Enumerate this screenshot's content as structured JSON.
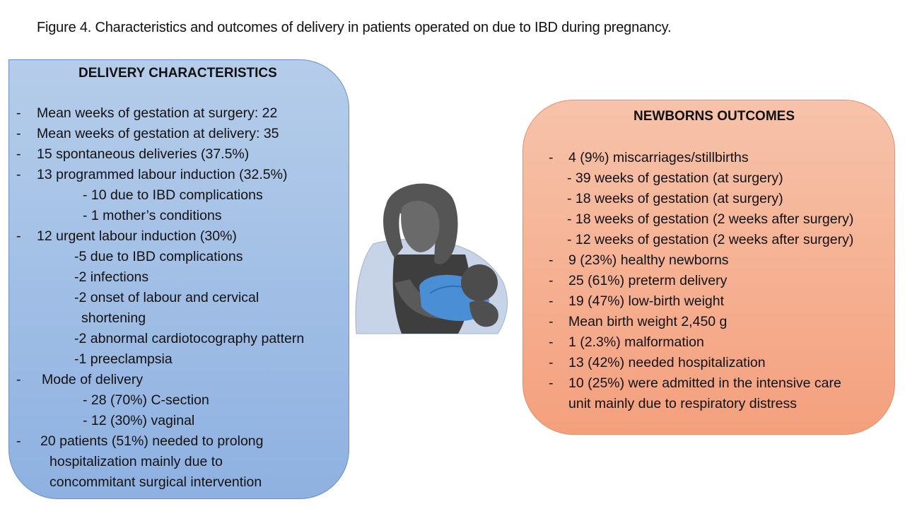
{
  "caption": "Figure 4. Characteristics and outcomes of delivery in patients operated on due to IBD during pregnancy.",
  "delivery": {
    "title": "DELIVERY CHARACTERISTICS",
    "lines": [
      "Mean weeks of gestation at surgery: 22",
      "Mean weeks of gestation at delivery: 35",
      "15 spontaneous deliveries (37.5%)",
      "13 programmed labour induction (32.5%)",
      "- 10 due to IBD complications",
      "- 1 mother’s conditions",
      "12  urgent labour induction (30%)",
      "-5 due to IBD complications",
      "-2 infections",
      "-2 onset of labour and cervical",
      "shortening",
      "-2 abnormal cardiotocography pattern",
      "-1 preeclampsia",
      "Mode of delivery",
      "- 28 (70%) C-section",
      "- 12 (30%) vaginal",
      "20 patients (51%)  needed to prolong",
      "hospitalization mainly due to",
      "concommitant surgical intervention"
    ]
  },
  "newborns": {
    "title": "NEWBORNS OUTCOMES",
    "lines": [
      "4 (9%) miscarriages/stillbirths",
      "- 39 weeks of gestation (at surgery)",
      "- 18 weeks of gestation (at surgery)",
      "- 18 weeks of gestation (2 weeks after surgery)",
      "- 12 weeks of gestation (2 weeks after surgery)",
      "9 (23%) healthy newborns",
      "25 (61%) preterm delivery",
      "19 (47%) low-birth weight",
      "Mean birth weight 2,450 g",
      "1 (2.3%) malformation",
      "13 (42%) needed hospitalization",
      "10 (25%) were admitted in the intensive care",
      "unit mainly due to respiratory distress"
    ]
  },
  "bullet": "-",
  "illustration": {
    "icon": "mother-breastfeeding-icon",
    "colors": {
      "hair": "#555555",
      "skin": "#6a6a6a",
      "shawl": "#c7d3e6",
      "baby_wrap": "#4a8fd6"
    }
  }
}
